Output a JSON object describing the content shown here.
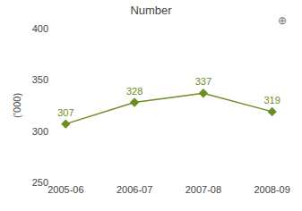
{
  "chart_data": {
    "type": "line",
    "title": "Number",
    "ylabel": "(’000)",
    "categories": [
      "2005-06",
      "2006-07",
      "2007-08",
      "2008-09"
    ],
    "values": [
      307,
      328,
      337,
      319
    ],
    "color": "#6b8e23",
    "marker": "diamond",
    "ylim": [
      250,
      400
    ],
    "yticks": [
      250,
      300,
      350,
      400
    ],
    "grid": false,
    "data_labels": true,
    "annotations": [
      "⊕"
    ]
  }
}
